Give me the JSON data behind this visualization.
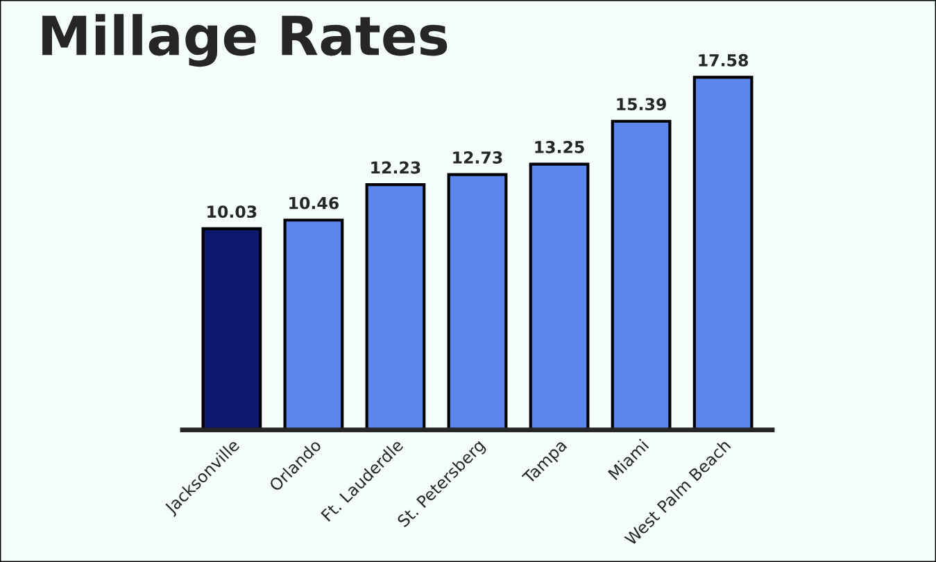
{
  "chart_data": {
    "type": "bar",
    "title": "Millage Rates",
    "categories": [
      "Jacksonville",
      "Orlando",
      "Ft. Lauderdle",
      "St. Petersberg",
      "Tampa",
      "Miami",
      "West Palm Beach"
    ],
    "values": [
      10.03,
      10.46,
      12.23,
      12.73,
      13.25,
      15.39,
      17.58
    ],
    "colors": [
      "#0c1a6e",
      "#5b86ee",
      "#5b86ee",
      "#5b86ee",
      "#5b86ee",
      "#5b86ee",
      "#5b86ee"
    ],
    "data_labels": true,
    "grid": false,
    "legend": false
  }
}
